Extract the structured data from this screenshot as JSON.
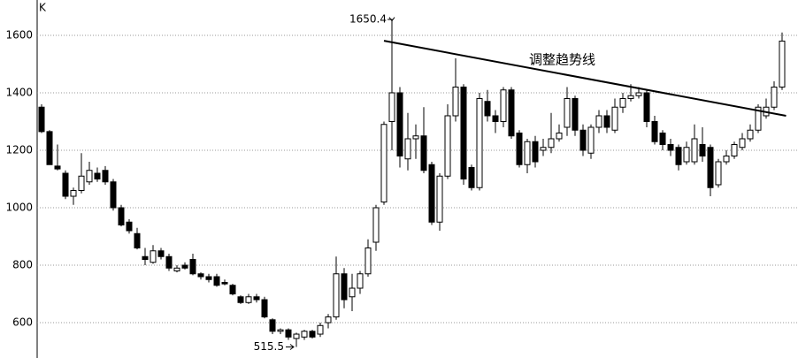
{
  "chart_data": {
    "type": "candlestick",
    "y_label": "K",
    "ylim": [
      477,
      1723
    ],
    "yticks": [
      600,
      800,
      1000,
      1200,
      1400,
      1600
    ],
    "grid": true,
    "up_color": "#ffffff",
    "down_color": "#000000",
    "series": {
      "open": [
        1350,
        1265,
        1145,
        1120,
        1040,
        1060,
        1090,
        1120,
        1130,
        1090,
        1000,
        950,
        910,
        830,
        810,
        850,
        830,
        780,
        800,
        820,
        770,
        760,
        760,
        740,
        730,
        690,
        670,
        690,
        680,
        610,
        570,
        575,
        545,
        550,
        570,
        560,
        600,
        620,
        770,
        690,
        720,
        770,
        880,
        1020,
        1300,
        1400,
        1170,
        1240,
        1250,
        1150,
        950,
        1110,
        1320,
        1420,
        1140,
        1070,
        1370,
        1320,
        1300,
        1410,
        1260,
        1150,
        1230,
        1200,
        1210,
        1240,
        1280,
        1380,
        1270,
        1190,
        1280,
        1320,
        1270,
        1350,
        1380,
        1390,
        1400,
        1300,
        1260,
        1220,
        1210,
        1160,
        1160,
        1220,
        1210,
        1080,
        1160,
        1180,
        1210,
        1240,
        1270,
        1320,
        1350,
        1420
      ],
      "high": [
        1360,
        1270,
        1220,
        1130,
        1070,
        1190,
        1160,
        1140,
        1145,
        1100,
        1010,
        960,
        930,
        860,
        870,
        860,
        840,
        800,
        810,
        840,
        775,
        770,
        770,
        750,
        735,
        695,
        700,
        700,
        690,
        615,
        580,
        580,
        565,
        575,
        575,
        600,
        630,
        830,
        790,
        770,
        780,
        890,
        1010,
        1300,
        1650.4,
        1420,
        1330,
        1290,
        1350,
        1160,
        1120,
        1360,
        1520,
        1430,
        1150,
        1400,
        1410,
        1340,
        1420,
        1420,
        1270,
        1240,
        1250,
        1240,
        1330,
        1290,
        1420,
        1390,
        1290,
        1290,
        1340,
        1340,
        1380,
        1400,
        1430,
        1420,
        1410,
        1320,
        1270,
        1240,
        1220,
        1230,
        1290,
        1280,
        1220,
        1170,
        1200,
        1230,
        1260,
        1290,
        1360,
        1380,
        1440,
        1610
      ],
      "low": [
        1260,
        1150,
        1130,
        1030,
        1010,
        1050,
        1080,
        1090,
        1080,
        990,
        935,
        910,
        855,
        800,
        805,
        820,
        780,
        775,
        785,
        765,
        750,
        740,
        725,
        730,
        695,
        665,
        665,
        670,
        615,
        560,
        560,
        540,
        515.5,
        540,
        545,
        550,
        580,
        610,
        650,
        640,
        700,
        760,
        850,
        1010,
        1200,
        1140,
        1130,
        1170,
        1120,
        940,
        920,
        1100,
        1300,
        1080,
        1060,
        1060,
        1300,
        1260,
        1280,
        1240,
        1140,
        1120,
        1140,
        1180,
        1190,
        1230,
        1250,
        1250,
        1180,
        1170,
        1260,
        1260,
        1260,
        1330,
        1370,
        1380,
        1280,
        1220,
        1200,
        1180,
        1130,
        1150,
        1150,
        1160,
        1040,
        1070,
        1150,
        1170,
        1200,
        1230,
        1260,
        1310,
        1340,
        1410
      ],
      "close": [
        1265,
        1150,
        1135,
        1040,
        1060,
        1110,
        1130,
        1100,
        1090,
        1000,
        940,
        920,
        860,
        820,
        850,
        830,
        790,
        790,
        790,
        770,
        760,
        750,
        730,
        735,
        700,
        670,
        690,
        680,
        620,
        570,
        575,
        550,
        560,
        570,
        550,
        590,
        620,
        770,
        680,
        720,
        770,
        860,
        1000,
        1290,
        1400,
        1180,
        1240,
        1250,
        1130,
        950,
        1110,
        1320,
        1420,
        1100,
        1070,
        1380,
        1320,
        1300,
        1410,
        1250,
        1150,
        1230,
        1160,
        1210,
        1240,
        1260,
        1380,
        1270,
        1200,
        1280,
        1320,
        1280,
        1350,
        1380,
        1390,
        1400,
        1300,
        1230,
        1220,
        1200,
        1150,
        1210,
        1240,
        1180,
        1070,
        1160,
        1180,
        1220,
        1240,
        1270,
        1350,
        1350,
        1420,
        1580
      ]
    },
    "annotations": [
      "1650.4",
      "515.5"
    ],
    "trendline": {
      "label": "调整趋势线",
      "start": [
        44,
        1581
      ],
      "end": [
        93.5,
        1320
      ]
    }
  }
}
